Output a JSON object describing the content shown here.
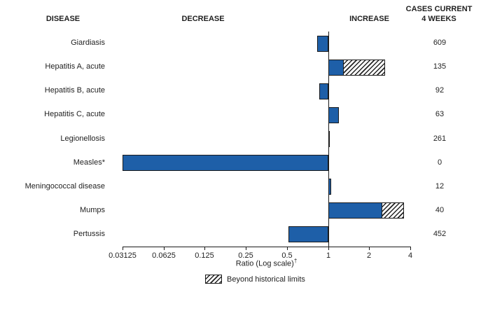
{
  "header": {
    "disease": "DISEASE",
    "decrease": "DECREASE",
    "increase": "INCREASE",
    "cases_current_line1": "CASES CURRENT",
    "cases_current_line2": "4 WEEKS"
  },
  "chart_data": {
    "type": "bar",
    "orientation": "horizontal",
    "x_scale": "log",
    "x_range": [
      0.03125,
      4
    ],
    "x_ticks": [
      "0.03125",
      "0.0625",
      "0.125",
      "0.25",
      "0.5",
      "1",
      "2",
      "4"
    ],
    "baseline_ratio": 1,
    "xlabel": {
      "text": "Ratio (Log scale)",
      "dagger": "†"
    },
    "legend": {
      "label": "Beyond historical limits",
      "swatch_style": "hatched"
    },
    "colors": {
      "bar_fill": "#1e5fa8",
      "bar_border": "#1a1a1a",
      "text": "#1f1f1f",
      "background": "#ffffff"
    },
    "rows": [
      {
        "disease": "Giardiasis",
        "ratio": 0.83,
        "beyond_historical_ratio": null,
        "cases_current_4_weeks": 609
      },
      {
        "disease": "Hepatitis A, acute",
        "ratio": 1.3,
        "beyond_historical_ratio": 2.6,
        "cases_current_4_weeks": 135
      },
      {
        "disease": "Hepatitis B, acute",
        "ratio": 0.86,
        "beyond_historical_ratio": null,
        "cases_current_4_weeks": 92
      },
      {
        "disease": "Hepatitis C, acute",
        "ratio": 1.2,
        "beyond_historical_ratio": null,
        "cases_current_4_weeks": 63
      },
      {
        "disease": "Legionellosis",
        "ratio": 1.02,
        "beyond_historical_ratio": null,
        "cases_current_4_weeks": 261
      },
      {
        "disease": "Measles*",
        "ratio": 0.03125,
        "beyond_historical_ratio": null,
        "cases_current_4_weeks": 0
      },
      {
        "disease": "Meningococcal disease",
        "ratio": 1.05,
        "beyond_historical_ratio": null,
        "cases_current_4_weeks": 12
      },
      {
        "disease": "Mumps",
        "ratio": 2.5,
        "beyond_historical_ratio": 3.6,
        "cases_current_4_weeks": 40
      },
      {
        "disease": "Pertussis",
        "ratio": 0.51,
        "beyond_historical_ratio": null,
        "cases_current_4_weeks": 452
      }
    ]
  }
}
